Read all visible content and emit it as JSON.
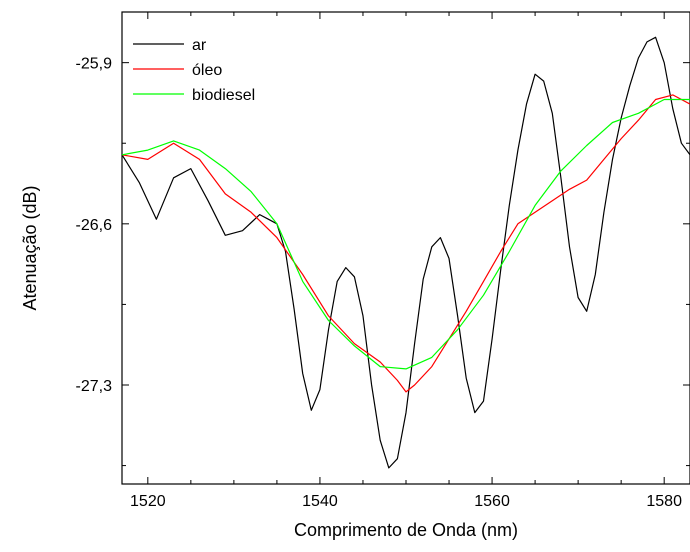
{
  "chart_data": {
    "type": "line",
    "xlabel": "Comprimento de Onda (nm)",
    "ylabel": "Atenuação (dB)",
    "xlim": [
      1517,
      1583
    ],
    "ylim": [
      -27.73,
      -25.68
    ],
    "x_ticks": [
      {
        "value": 1520,
        "label": "1520"
      },
      {
        "value": 1540,
        "label": "1540"
      },
      {
        "value": 1560,
        "label": "1560"
      },
      {
        "value": 1580,
        "label": "1580"
      }
    ],
    "y_ticks": [
      {
        "value": -25.9,
        "label": "-25,9"
      },
      {
        "value": -26.6,
        "label": "-26,6"
      },
      {
        "value": -27.3,
        "label": "-27,3"
      }
    ],
    "grid": false,
    "legend_position": "top-left",
    "series": [
      {
        "name": "ar",
        "color": "#000000",
        "x": [
          1517,
          1519,
          1521,
          1523,
          1525,
          1527,
          1529,
          1531,
          1533,
          1534,
          1535,
          1536,
          1537,
          1538,
          1539,
          1540,
          1541,
          1542,
          1543,
          1544,
          1545,
          1546,
          1547,
          1548,
          1549,
          1550,
          1551,
          1552,
          1553,
          1554,
          1555,
          1556,
          1557,
          1558,
          1559,
          1560,
          1561,
          1562,
          1563,
          1564,
          1565,
          1566,
          1567,
          1568,
          1569,
          1570,
          1571,
          1572,
          1573,
          1574,
          1575,
          1576,
          1577,
          1578,
          1579,
          1580,
          1581,
          1582,
          1583
        ],
        "y": [
          -26.3,
          -26.42,
          -26.58,
          -26.4,
          -26.36,
          -26.5,
          -26.65,
          -26.63,
          -26.56,
          -26.58,
          -26.6,
          -26.72,
          -26.97,
          -27.25,
          -27.41,
          -27.32,
          -27.06,
          -26.85,
          -26.79,
          -26.83,
          -27.0,
          -27.3,
          -27.54,
          -27.66,
          -27.62,
          -27.42,
          -27.12,
          -26.84,
          -26.7,
          -26.66,
          -26.75,
          -27.0,
          -27.27,
          -27.42,
          -27.37,
          -27.1,
          -26.8,
          -26.52,
          -26.28,
          -26.08,
          -25.95,
          -25.98,
          -26.12,
          -26.4,
          -26.7,
          -26.92,
          -26.98,
          -26.82,
          -26.55,
          -26.32,
          -26.14,
          -26.0,
          -25.88,
          -25.81,
          -25.79,
          -25.9,
          -26.1,
          -26.25,
          -26.3
        ]
      },
      {
        "name": "óleo",
        "color": "#ff0000",
        "x": [
          1517,
          1520,
          1523,
          1526,
          1529,
          1532,
          1535,
          1538,
          1541,
          1544,
          1547,
          1549,
          1550,
          1551,
          1553,
          1555,
          1557,
          1559,
          1561,
          1563,
          1565,
          1567,
          1569,
          1571,
          1573,
          1575,
          1577,
          1579,
          1581,
          1583
        ],
        "y": [
          -26.3,
          -26.32,
          -26.25,
          -26.32,
          -26.47,
          -26.55,
          -26.66,
          -26.82,
          -27.0,
          -27.12,
          -27.2,
          -27.28,
          -27.33,
          -27.3,
          -27.22,
          -27.1,
          -26.98,
          -26.85,
          -26.72,
          -26.6,
          -26.55,
          -26.5,
          -26.45,
          -26.41,
          -26.32,
          -26.23,
          -26.15,
          -26.06,
          -26.04,
          -26.08
        ]
      },
      {
        "name": "biodiesel",
        "color": "#00ff00",
        "x": [
          1517,
          1520,
          1523,
          1526,
          1529,
          1532,
          1535,
          1538,
          1541,
          1544,
          1547,
          1550,
          1553,
          1556,
          1559,
          1562,
          1565,
          1568,
          1571,
          1574,
          1577,
          1580,
          1583
        ],
        "y": [
          -26.3,
          -26.28,
          -26.24,
          -26.28,
          -26.36,
          -26.46,
          -26.6,
          -26.85,
          -27.02,
          -27.13,
          -27.22,
          -27.23,
          -27.18,
          -27.06,
          -26.91,
          -26.72,
          -26.52,
          -26.37,
          -26.26,
          -26.16,
          -26.12,
          -26.06,
          -26.06
        ]
      }
    ]
  }
}
